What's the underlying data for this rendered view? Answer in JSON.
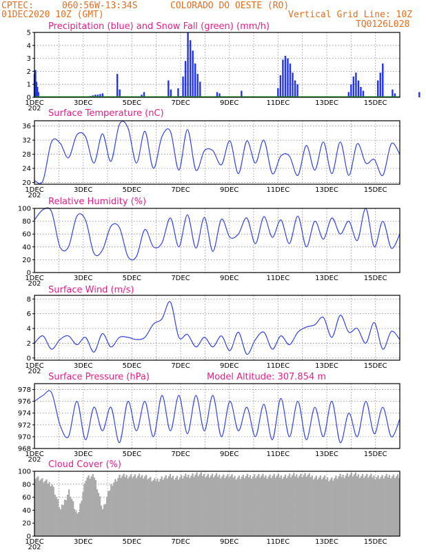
{
  "header": {
    "org": "CPTEC:",
    "coords": "060:56W-13:34S",
    "location": "COLORADO DO OESTE (RO)",
    "run_date": "01DEC2020 10Z (GMT)",
    "grid_note": "Vertical Grid Line: 10Z",
    "code": "TQ0126L028"
  },
  "x_axis": {
    "days": 15,
    "labels": [
      "1DEC",
      "3DEC",
      "5DEC",
      "7DEC",
      "9DEC",
      "11DEC",
      "13DEC",
      "15DEC"
    ],
    "label_days": [
      0,
      2,
      4,
      6,
      8,
      10,
      12,
      14
    ],
    "year_stub": "202"
  },
  "colors": {
    "line": "#3344dd",
    "bar": "#2233ee",
    "snow": "#22aa22",
    "cloud": "#aaaaaa",
    "title": "#e0208a",
    "header": "#e07020"
  },
  "chart_data": [
    {
      "id": "precip",
      "type": "bar",
      "title": "Precipitation (blue) and Snow Fall (green) (mm/h)",
      "ylim": [
        0,
        5
      ],
      "yticks": [
        0,
        1,
        2,
        3,
        4,
        5
      ],
      "x_days": [
        0.0,
        0.04,
        0.08,
        0.12,
        0.16,
        2.3,
        2.4,
        2.5,
        2.6,
        2.7,
        2.8,
        3.4,
        3.5,
        4.4,
        4.5,
        5.5,
        5.6,
        5.9,
        6.0,
        6.1,
        6.2,
        6.3,
        6.4,
        6.5,
        6.6,
        6.7,
        6.8,
        7.5,
        7.6,
        8.5,
        10.0,
        10.1,
        10.2,
        10.3,
        10.4,
        10.5,
        10.6,
        10.7,
        10.8,
        12.9,
        13.0,
        13.1,
        13.2,
        13.3,
        13.4,
        13.5,
        14.1,
        14.2,
        14.3,
        14.7,
        14.8,
        15.8
      ],
      "values": [
        1.8,
        2.1,
        1.2,
        0.8,
        0.4,
        0.1,
        0.15,
        0.2,
        0.2,
        0.25,
        0.3,
        1.8,
        0.6,
        0.2,
        0.4,
        1.3,
        0.6,
        0.7,
        0.1,
        1.6,
        2.8,
        5.0,
        4.4,
        3.6,
        2.6,
        1.8,
        1.2,
        0.4,
        0.3,
        0.5,
        0.7,
        1.7,
        2.9,
        3.2,
        3.0,
        2.6,
        1.9,
        1.3,
        1.0,
        0.4,
        1.0,
        1.6,
        1.9,
        1.3,
        0.8,
        0.5,
        1.3,
        1.9,
        2.6,
        0.6,
        0.3,
        0.4
      ],
      "snow": 0
    },
    {
      "id": "temp",
      "type": "line",
      "title": "Surface Temperature (nC)",
      "ylim": [
        19.5,
        37.5
      ],
      "yticks": [
        20,
        24,
        28,
        32,
        36
      ],
      "values": [
        20.5,
        20.5,
        31.5,
        31.2,
        27.0,
        33.5,
        33.0,
        25.5,
        33.8,
        26.0,
        36.5,
        35.5,
        25.5,
        34.5,
        24.0,
        33.0,
        34.5,
        23.5,
        35.0,
        23.5,
        29.0,
        29.0,
        25.0,
        31.8,
        22.5,
        31.8,
        25.5,
        32.0,
        22.5,
        27.5,
        27.5,
        22.0,
        30.5,
        23.5,
        31.5,
        22.5,
        31.5,
        22.0,
        31.0,
        25.5,
        26.5,
        22.0,
        31.0,
        28.0
      ]
    },
    {
      "id": "rh",
      "type": "line",
      "title": "Relative Humidity (%)",
      "ylim": [
        0,
        100
      ],
      "yticks": [
        0,
        20,
        40,
        60,
        80,
        100
      ],
      "values": [
        82,
        98,
        95,
        40,
        40,
        88,
        82,
        30,
        35,
        72,
        70,
        25,
        25,
        67,
        40,
        46,
        85,
        40,
        90,
        38,
        86,
        33,
        83,
        55,
        60,
        85,
        45,
        87,
        55,
        82,
        45,
        88,
        40,
        80,
        52,
        85,
        60,
        80,
        50,
        100,
        40,
        80,
        38,
        60
      ]
    },
    {
      "id": "wind",
      "type": "line",
      "title": "Surface Wind (m/s)",
      "ylim": [
        -0.3,
        8.5
      ],
      "yticks": [
        0,
        2,
        4,
        6,
        8
      ],
      "values": [
        2.0,
        3.0,
        1.2,
        2.5,
        3.0,
        1.8,
        2.8,
        0.8,
        3.3,
        1.5,
        2.8,
        2.8,
        2.5,
        2.8,
        4.6,
        5.3,
        7.6,
        2.8,
        3.2,
        1.5,
        2.8,
        1.5,
        3.0,
        1.0,
        3.5,
        0.5,
        2.5,
        3.5,
        1.2,
        3.0,
        1.8,
        3.5,
        4.2,
        4.5,
        5.5,
        2.8,
        5.8,
        3.5,
        4.0,
        2.0,
        4.8,
        1.2,
        3.6,
        2.5
      ]
    },
    {
      "id": "press",
      "type": "line",
      "title": "Surface Pressure (hPa)",
      "extra": "Model Altitude: 307.854 m",
      "ylim": [
        968,
        979
      ],
      "yticks": [
        968,
        970,
        972,
        974,
        976,
        978
      ],
      "values": [
        976,
        977,
        977.5,
        972,
        970,
        976,
        969.5,
        975,
        971,
        975,
        969,
        976,
        971,
        976,
        970,
        977,
        971,
        977,
        970.5,
        977,
        971,
        977,
        970,
        976,
        971,
        975,
        970,
        975.5,
        969.5,
        976.5,
        970,
        976,
        969.5,
        975,
        970,
        976,
        969,
        974,
        970,
        976,
        970.5,
        975,
        970,
        973
      ]
    },
    {
      "id": "cloud",
      "type": "area",
      "title": "Cloud Cover (%)",
      "ylim": [
        0,
        100
      ],
      "yticks": [
        0,
        20,
        40,
        60,
        80,
        100
      ],
      "values": [
        92,
        85,
        80,
        40,
        70,
        30,
        90,
        92,
        40,
        80,
        92,
        93,
        92,
        93,
        85,
        90,
        92,
        90,
        93,
        95,
        94,
        93,
        93,
        92,
        91,
        92,
        93,
        92,
        93,
        92,
        93,
        94,
        94,
        91,
        90,
        88,
        92,
        95,
        94,
        93,
        92,
        91,
        93,
        92
      ]
    }
  ]
}
